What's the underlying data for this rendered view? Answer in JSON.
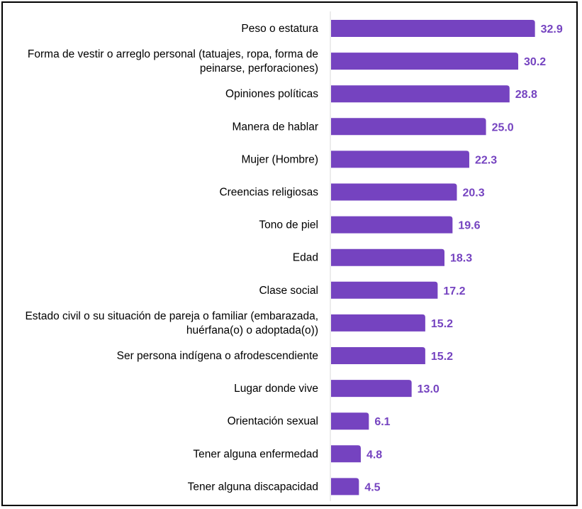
{
  "chart_data": {
    "type": "bar",
    "orientation": "horizontal",
    "categories": [
      [
        "Peso o estatura"
      ],
      [
        "Forma de vestir o arreglo personal (tatuajes, ropa, forma de",
        "peinarse, perforaciones)"
      ],
      [
        "Opiniones políticas"
      ],
      [
        "Manera de hablar"
      ],
      [
        "Mujer (Hombre)"
      ],
      [
        "Creencias religiosas"
      ],
      [
        "Tono de piel"
      ],
      [
        "Edad"
      ],
      [
        "Clase social"
      ],
      [
        "Estado civil o su situación de pareja o familiar (embarazada,",
        "huérfana(o) o adoptada(o))"
      ],
      [
        "Ser persona indígena o afrodescendiente"
      ],
      [
        "Lugar donde vive"
      ],
      [
        "Orientación sexual"
      ],
      [
        "Tener alguna enfermedad"
      ],
      [
        "Tener alguna discapacidad"
      ]
    ],
    "values": [
      32.9,
      30.2,
      28.8,
      25.0,
      22.3,
      20.3,
      19.6,
      18.3,
      17.2,
      15.2,
      15.2,
      13.0,
      6.1,
      4.8,
      4.5
    ],
    "value_labels": [
      "32.9",
      "30.2",
      "28.8",
      "25.0",
      "22.3",
      "20.3",
      "19.6",
      "18.3",
      "17.2",
      "15.2",
      "15.2",
      "13.0",
      "6.1",
      "4.8",
      "4.5"
    ],
    "bar_color": "#7543c0",
    "label_color": "#7543c0",
    "axis_line_color": "#d9d9d9",
    "xlim": [
      0,
      35
    ],
    "grid": false,
    "legend": "none"
  }
}
